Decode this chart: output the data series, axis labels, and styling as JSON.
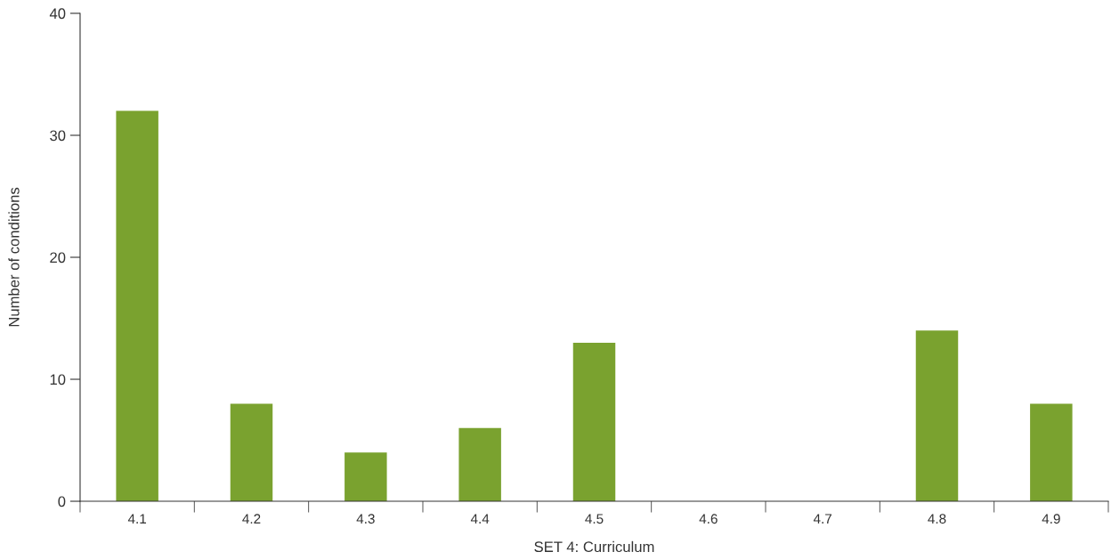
{
  "chart_data": {
    "type": "bar",
    "xlabel": "SET 4: Curriculum",
    "ylabel": "Number of conditions",
    "categories": [
      "4.1",
      "4.2",
      "4.3",
      "4.4",
      "4.5",
      "4.6",
      "4.7",
      "4.8",
      "4.9"
    ],
    "values": [
      32,
      8,
      4,
      6,
      13,
      0,
      0,
      14,
      8
    ],
    "color": "#7aa22f",
    "ylim": [
      0,
      40
    ],
    "yticks": [
      0,
      10,
      20,
      30,
      40
    ],
    "grid": false
  }
}
